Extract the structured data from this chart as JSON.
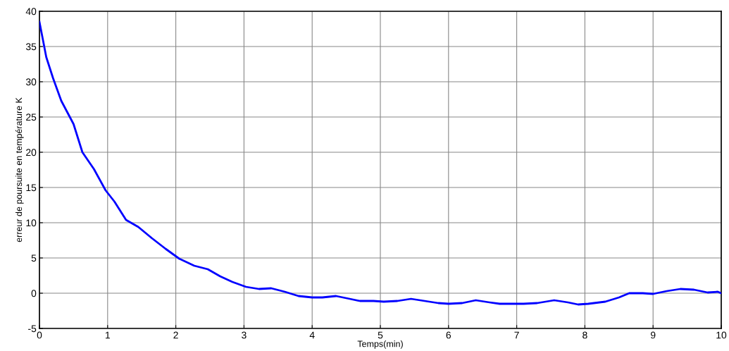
{
  "chart_data": {
    "type": "line",
    "xlabel": "Temps(min)",
    "ylabel": "erreur de poursuite en température K",
    "x": [
      0,
      0.1,
      0.2,
      0.32,
      0.5,
      0.63,
      0.8,
      0.97,
      1.1,
      1.27,
      1.45,
      1.65,
      1.85,
      2.05,
      2.27,
      2.47,
      2.65,
      2.83,
      3.03,
      3.22,
      3.4,
      3.6,
      3.8,
      4.0,
      4.15,
      4.35,
      4.55,
      4.7,
      4.9,
      5.05,
      5.25,
      5.45,
      5.65,
      5.85,
      6.0,
      6.2,
      6.4,
      6.6,
      6.75,
      7.1,
      7.3,
      7.55,
      7.75,
      7.9,
      8.05,
      8.3,
      8.5,
      8.65,
      8.85,
      9.0,
      9.2,
      9.4,
      9.6,
      9.8,
      9.95,
      10
    ],
    "series": [
      {
        "color": "#0000ff",
        "values": [
          38.5,
          33.5,
          30.5,
          27.3,
          24,
          20,
          17.6,
          14.6,
          13,
          10.4,
          9.4,
          7.8,
          6.3,
          4.9,
          3.9,
          3.4,
          2.4,
          1.6,
          0.9,
          0.6,
          0.7,
          0.2,
          -0.4,
          -0.6,
          -0.6,
          -0.4,
          -0.8,
          -1.1,
          -1.1,
          -1.2,
          -1.1,
          -0.8,
          -1.1,
          -1.4,
          -1.5,
          -1.4,
          -1.0,
          -1.3,
          -1.5,
          -1.5,
          -1.4,
          -1.0,
          -1.3,
          -1.6,
          -1.5,
          -1.2,
          -0.6,
          0,
          0,
          -0.1,
          0.3,
          0.6,
          0.5,
          0.1,
          0.2,
          0
        ]
      }
    ],
    "xlim": [
      0,
      10
    ],
    "xticks": [
      0,
      1,
      2,
      3,
      4,
      5,
      6,
      7,
      8,
      9,
      10
    ],
    "ylim": [
      -5,
      40
    ],
    "yticks": [
      -5,
      0,
      5,
      10,
      15,
      20,
      25,
      30,
      35,
      40
    ],
    "grid": true,
    "line_style": "solid",
    "marker": "none"
  }
}
